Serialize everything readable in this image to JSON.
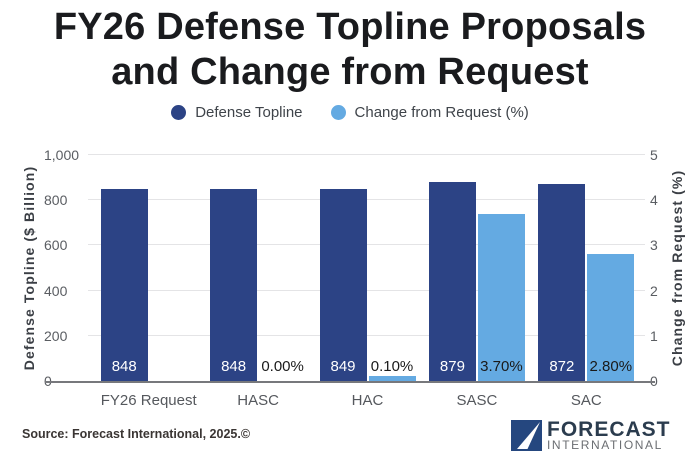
{
  "title": {
    "line1": "FY26 Defense Topline Proposals",
    "line2": "and Change from Request"
  },
  "legend": [
    {
      "label": "Defense Topline",
      "color": "#2c4385"
    },
    {
      "label": "Change from Request (%)",
      "color": "#64aae2"
    }
  ],
  "chart_data": {
    "type": "bar",
    "title": "FY26 Defense Topline Proposals and Change from Request",
    "categories": [
      "FY26 Request",
      "HASC",
      "HAC",
      "SASC",
      "SAC"
    ],
    "series": [
      {
        "name": "Defense Topline",
        "axis": "left",
        "color": "#2c4385",
        "values": [
          848,
          848,
          849,
          879,
          872
        ],
        "labels": [
          "848",
          "848",
          "849",
          "879",
          "872"
        ],
        "label_color": "#ffffff"
      },
      {
        "name": "Change from Request (%)",
        "axis": "right",
        "color": "#64aae2",
        "values": [
          null,
          0.0,
          0.1,
          3.7,
          2.8
        ],
        "labels": [
          null,
          "0.00%",
          "0.10%",
          "3.70%",
          "2.80%"
        ],
        "label_color": "#1a1a1a"
      }
    ],
    "left_axis": {
      "title": "Defense Topline ($ Billion)",
      "min": 0,
      "max": 1000,
      "tick_labels": [
        "0",
        "200",
        "400",
        "600",
        "800",
        "1,000"
      ],
      "tick_values": [
        0,
        200,
        400,
        600,
        800,
        1000
      ]
    },
    "right_axis": {
      "title": "Change from Request (%)",
      "min": 0,
      "max": 5,
      "tick_labels": [
        "0",
        "1",
        "2",
        "3",
        "4",
        "5"
      ],
      "tick_values": [
        0,
        1,
        2,
        3,
        4,
        5
      ]
    },
    "grid": true,
    "legend_position": "top"
  },
  "footer": {
    "source": "Source: Forecast International, 2025.©",
    "brand_line1": "FORECAST",
    "brand_line2": "INTERNATIONAL"
  }
}
